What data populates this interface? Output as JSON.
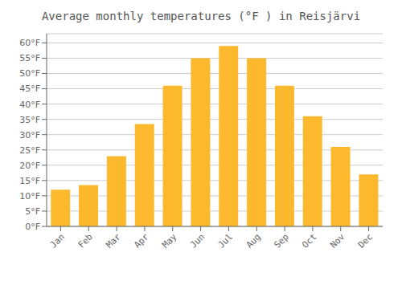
{
  "chart_data": {
    "type": "bar",
    "title": "Average monthly temperatures (°F ) in Reisjärvi",
    "categories": [
      "Jan",
      "Feb",
      "Mar",
      "Apr",
      "May",
      "Jun",
      "Jul",
      "Aug",
      "Sep",
      "Oct",
      "Nov",
      "Dec"
    ],
    "values": [
      12,
      13.5,
      23,
      33.5,
      46,
      55,
      59,
      55,
      46,
      36,
      26,
      17
    ],
    "color": "#FDB92E",
    "ylim": [
      0,
      63
    ],
    "yticks": [
      {
        "value": 0,
        "label": "0°F"
      },
      {
        "value": 5,
        "label": "5°F"
      },
      {
        "value": 10,
        "label": "10°F"
      },
      {
        "value": 15,
        "label": "15°F"
      },
      {
        "value": 20,
        "label": "20°F"
      },
      {
        "value": 25,
        "label": "25°F"
      },
      {
        "value": 30,
        "label": "30°F"
      },
      {
        "value": 35,
        "label": "35°F"
      },
      {
        "value": 40,
        "label": "40°F"
      },
      {
        "value": 45,
        "label": "45°F"
      },
      {
        "value": 50,
        "label": "50°F"
      },
      {
        "value": 55,
        "label": "55°F"
      },
      {
        "value": 60,
        "label": "60°F"
      }
    ],
    "grid": true
  }
}
